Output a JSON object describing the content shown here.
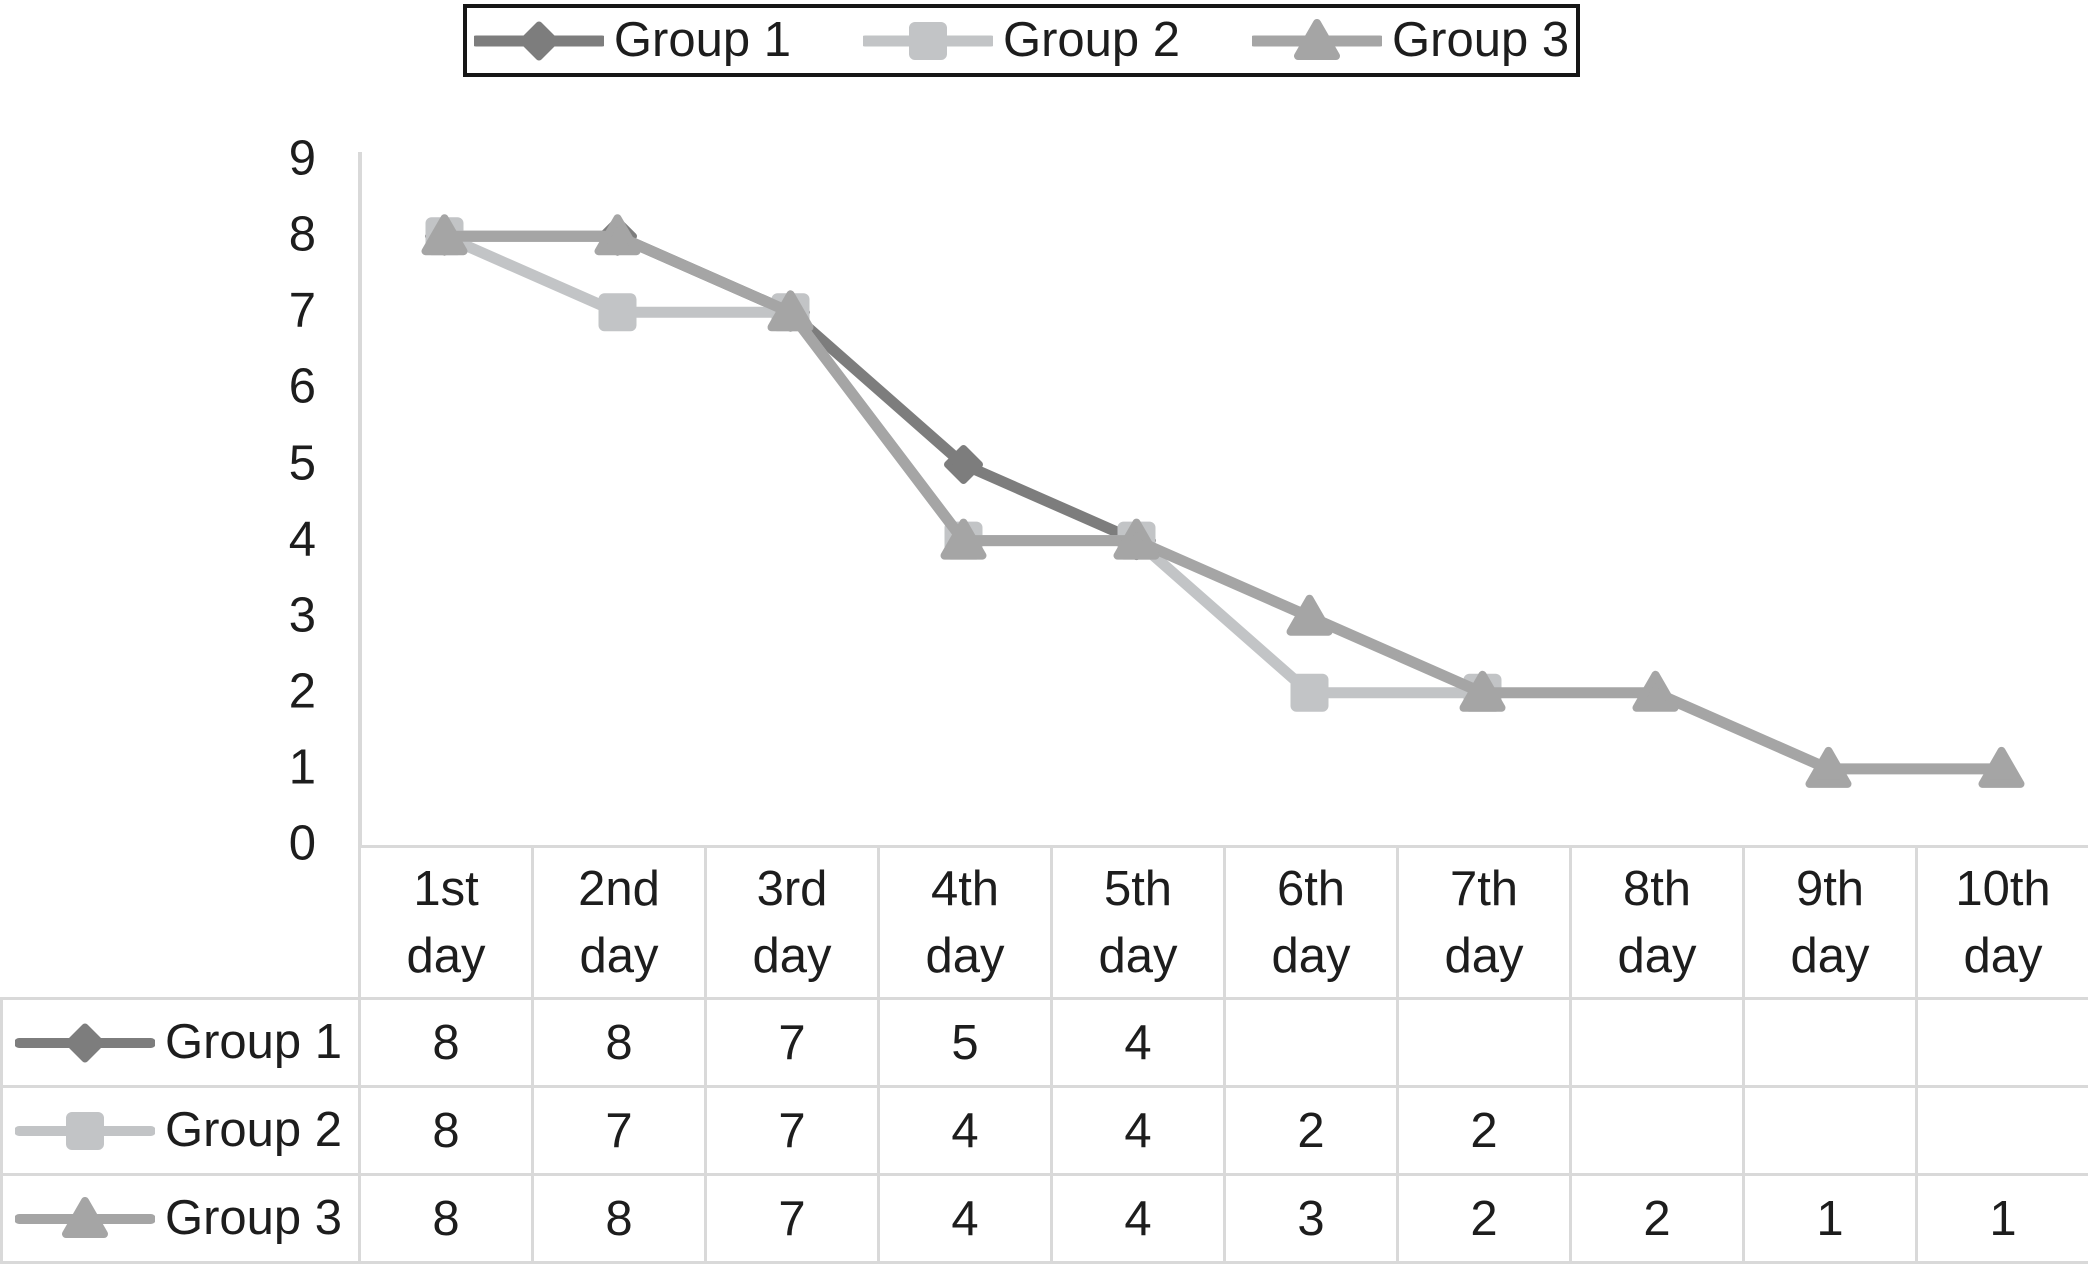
{
  "chart_data": {
    "type": "line",
    "title": "",
    "xlabel": "",
    "ylabel": "",
    "categories": [
      "1st day",
      "2nd day",
      "3rd day",
      "4th day",
      "5th day",
      "6th day",
      "7th day",
      "8th day",
      "9th day",
      "10th day"
    ],
    "yticks": [
      0,
      1,
      2,
      3,
      4,
      5,
      6,
      7,
      8,
      9
    ],
    "ylim": [
      0,
      9
    ],
    "grid": false,
    "legend_position": "top",
    "axis_color": "#d9d9d9",
    "text_color": "#1d1d1d",
    "legend_border_color": "#161616",
    "series": [
      {
        "name": "Group 1",
        "marker": "diamond",
        "color": "#7d7d7d",
        "values": [
          8,
          8,
          7,
          5,
          4,
          null,
          null,
          null,
          null,
          null
        ]
      },
      {
        "name": "Group 2",
        "marker": "square",
        "color": "#c2c4c6",
        "values": [
          8,
          7,
          7,
          4,
          4,
          2,
          2,
          null,
          null,
          null
        ]
      },
      {
        "name": "Group 3",
        "marker": "triangle",
        "color": "#a5a5a5",
        "values": [
          8,
          8,
          7,
          4,
          4,
          3,
          2,
          2,
          1,
          1
        ]
      }
    ]
  }
}
